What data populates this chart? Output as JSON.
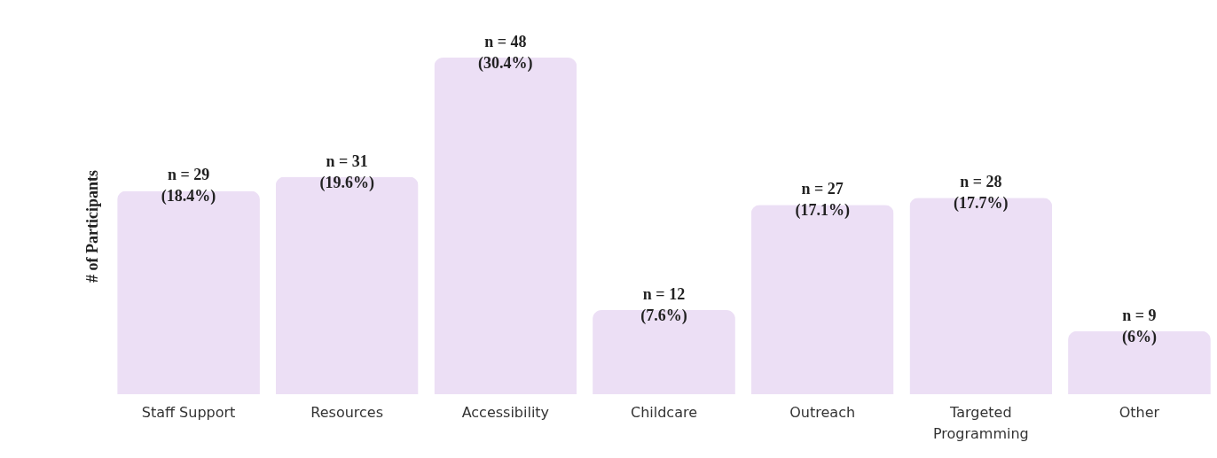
{
  "chart_data": {
    "type": "bar",
    "ylabel": "# of Participants",
    "categories": [
      "Staff Support",
      "Resources",
      "Accessibility",
      "Childcare",
      "Outreach",
      "Targeted Programming",
      "Other"
    ],
    "values": [
      29,
      31,
      48,
      12,
      27,
      28,
      9
    ],
    "value_labels": [
      "n = 29\n(18.4%)",
      "n = 31\n(19.6%)",
      "n = 48\n(30.4%)",
      "n = 12\n(7.6%)",
      "n = 27\n(17.1%)",
      "n = 28\n(17.7%)",
      "n = 9\n(6%)"
    ],
    "color": "#ecdff5",
    "grid": false,
    "tick_labels": "x"
  }
}
